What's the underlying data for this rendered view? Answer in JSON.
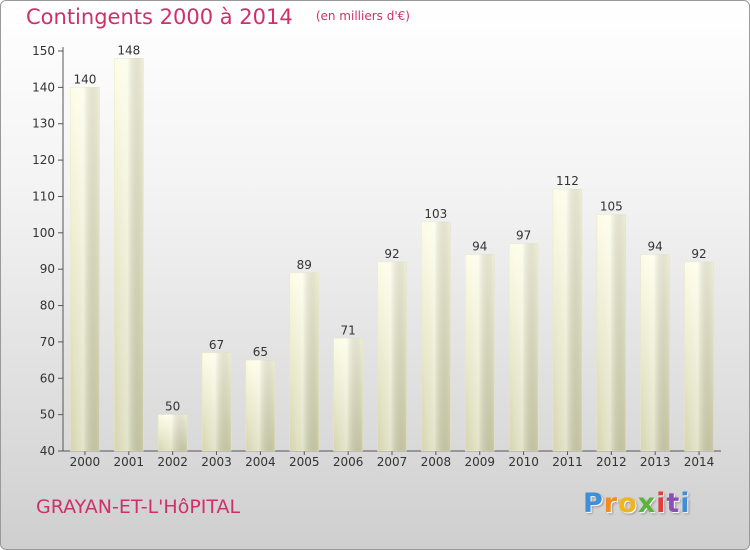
{
  "chart_data": {
    "type": "bar",
    "title": "Contingents 2000 à 2014",
    "unit": "(en milliers d'€)",
    "categories": [
      "2000",
      "2001",
      "2002",
      "2003",
      "2004",
      "2005",
      "2006",
      "2007",
      "2008",
      "2009",
      "2010",
      "2011",
      "2012",
      "2013",
      "2014"
    ],
    "values": [
      140,
      148,
      50,
      67,
      65,
      89,
      71,
      92,
      103,
      94,
      97,
      112,
      105,
      94,
      92
    ],
    "ylim": [
      40,
      150
    ],
    "yticks": [
      40,
      50,
      60,
      70,
      80,
      90,
      100,
      110,
      120,
      130,
      140,
      150
    ],
    "grid": false,
    "legend": "none",
    "bar_color": "#f5f5cf"
  },
  "footer": {
    "commune": "GRAYAN-ET-L'HôPITAL",
    "logo_letters": [
      "P",
      "r",
      "o",
      "x",
      "i",
      "t",
      "i"
    ],
    "logo_colors": [
      "#3e8fd8",
      "#f28c1e",
      "#f0b41e",
      "#5ab43c",
      "#e23c3c",
      "#8c50b4",
      "#3e8fd8"
    ]
  }
}
